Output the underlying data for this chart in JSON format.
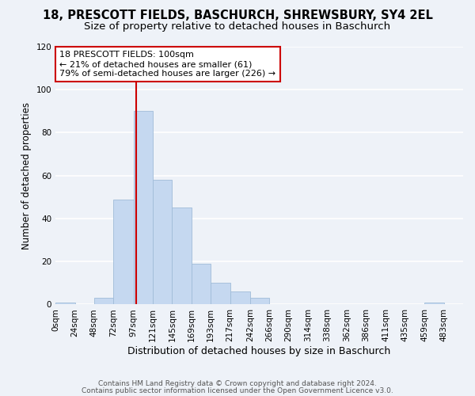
{
  "title": "18, PRESCOTT FIELDS, BASCHURCH, SHREWSBURY, SY4 2EL",
  "subtitle": "Size of property relative to detached houses in Baschurch",
  "xlabel": "Distribution of detached houses by size in Baschurch",
  "ylabel": "Number of detached properties",
  "bin_labels": [
    "0sqm",
    "24sqm",
    "48sqm",
    "72sqm",
    "97sqm",
    "121sqm",
    "145sqm",
    "169sqm",
    "193sqm",
    "217sqm",
    "242sqm",
    "266sqm",
    "290sqm",
    "314sqm",
    "338sqm",
    "362sqm",
    "386sqm",
    "411sqm",
    "435sqm",
    "459sqm",
    "483sqm"
  ],
  "label_values": [
    0,
    24,
    48,
    72,
    97,
    121,
    145,
    169,
    193,
    217,
    242,
    266,
    290,
    314,
    338,
    362,
    386,
    411,
    435,
    459,
    483
  ],
  "counts": [
    1,
    0,
    3,
    49,
    90,
    58,
    45,
    19,
    10,
    6,
    3,
    0,
    0,
    0,
    0,
    0,
    0,
    0,
    0,
    1,
    0
  ],
  "bar_color": "#c5d8f0",
  "bar_edge_color": "#a0bcd8",
  "property_line_x": 100,
  "property_line_color": "#cc0000",
  "annotation_line1": "18 PRESCOTT FIELDS: 100sqm",
  "annotation_line2": "← 21% of detached houses are smaller (61)",
  "annotation_line3": "79% of semi-detached houses are larger (226) →",
  "annotation_box_color": "#ffffff",
  "annotation_box_edge_color": "#cc0000",
  "ylim": [
    0,
    120
  ],
  "xlim_max": 507,
  "footer1": "Contains HM Land Registry data © Crown copyright and database right 2024.",
  "footer2": "Contains public sector information licensed under the Open Government Licence v3.0.",
  "background_color": "#eef2f8",
  "grid_color": "#ffffff",
  "title_fontsize": 10.5,
  "subtitle_fontsize": 9.5,
  "ylabel_fontsize": 8.5,
  "xlabel_fontsize": 9,
  "tick_fontsize": 7.5,
  "annotation_fontsize": 8,
  "footer_fontsize": 6.5
}
